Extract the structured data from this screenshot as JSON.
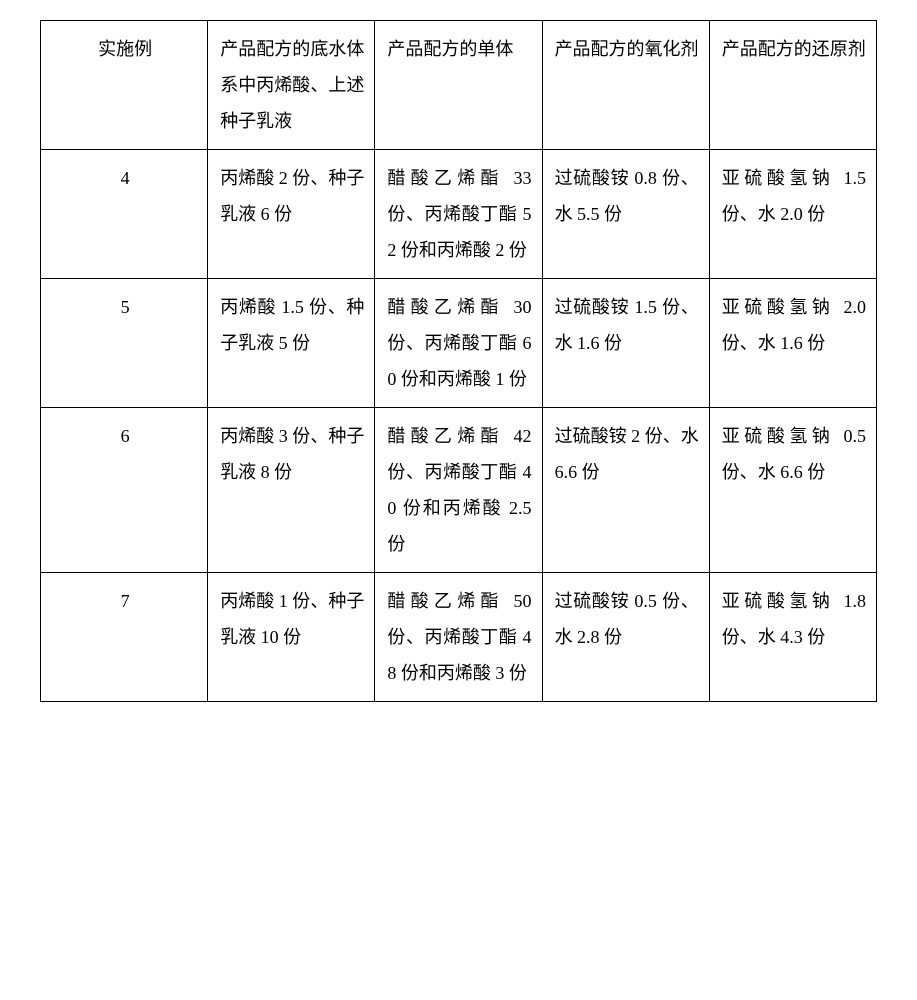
{
  "table": {
    "columns": [
      {
        "header": "实施例"
      },
      {
        "header": "产品配方的底水体系中丙烯酸、上述种子乳液"
      },
      {
        "header": "产品配方的单体"
      },
      {
        "header": "产品配方的氧化剂"
      },
      {
        "header": "产品配方的还原剂"
      }
    ],
    "rows": [
      {
        "id": "4",
        "base": "丙烯酸 2 份、种子乳液 6 份",
        "monomer": "醋酸乙烯酯 33 份、丙烯酸丁酯 52 份和丙烯酸 2 份",
        "oxidizer": "过硫酸铵 0.8 份、水 5.5 份",
        "reducer": "亚硫酸氢钠 1.5 份、水 2.0 份"
      },
      {
        "id": "5",
        "base": "丙烯酸 1.5 份、种子乳液 5 份",
        "monomer": "醋酸乙烯酯 30 份、丙烯酸丁酯 60 份和丙烯酸 1 份",
        "oxidizer": "过硫酸铵 1.5 份、水 1.6 份",
        "reducer": "亚硫酸氢钠 2.0 份、水 1.6 份"
      },
      {
        "id": "6",
        "base": "丙烯酸 3 份、种子乳液 8 份",
        "monomer": "醋酸乙烯酯 42 份、丙烯酸丁酯 40 份和丙烯酸 2.5 份",
        "oxidizer": "过硫酸铵 2 份、水 6.6 份",
        "reducer": "亚硫酸氢钠 0.5 份、水 6.6 份"
      },
      {
        "id": "7",
        "base": "丙烯酸 1 份、种子乳液 10 份",
        "monomer": "醋酸乙烯酯 50 份、丙烯酸丁酯 48 份和丙烯酸 3 份",
        "oxidizer": "过硫酸铵 0.5 份、水 2.8 份",
        "reducer": "亚硫酸氢钠 1.8 份、水 4.3 份"
      }
    ]
  }
}
